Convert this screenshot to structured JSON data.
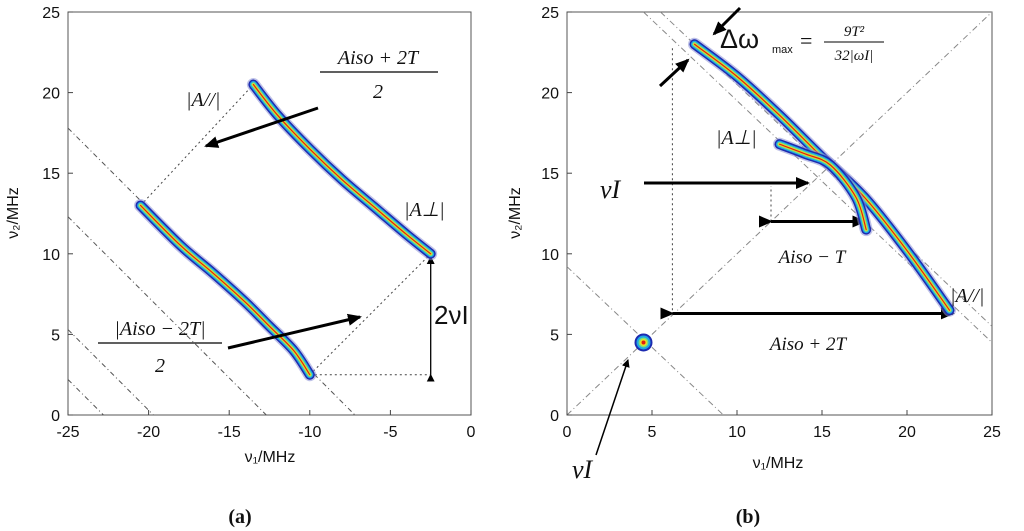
{
  "panels": [
    {
      "id": "a",
      "caption": "(a)",
      "xlabel": "ν₁/MHz",
      "ylabel": "ν₂/MHz",
      "xlim": [
        -25,
        0
      ],
      "ylim": [
        0,
        25
      ],
      "xticks": [
        "-25",
        "-20",
        "-15",
        "-10",
        "-5",
        "0"
      ],
      "yticks": [
        "0",
        "5",
        "10",
        "15",
        "20",
        "25"
      ],
      "annotations": {
        "a_par": "|A//|",
        "a_perp": "|A⊥|",
        "top_fraction_num": "Aiso + 2T",
        "top_fraction_den": "2",
        "bottom_fraction_num": "|Aiso − 2T|",
        "bottom_fraction_den": "2",
        "two_nu": "2νI"
      }
    },
    {
      "id": "b",
      "caption": "(b)",
      "xlabel": "ν₁/MHz",
      "ylabel": "ν₂/MHz",
      "xlim": [
        0,
        25
      ],
      "ylim": [
        0,
        25
      ],
      "xticks": [
        "0",
        "5",
        "10",
        "15",
        "20",
        "25"
      ],
      "yticks": [
        "0",
        "5",
        "10",
        "15",
        "20",
        "25"
      ],
      "annotations": {
        "delta_omega": "Δω",
        "delta_sub": "max",
        "delta_frac_num": "9T²",
        "delta_frac_den": "32|ωI|",
        "a_perp": "|A⊥|",
        "nu_i": "νI",
        "nu_i_bottom": "νI",
        "aiso_minus_t": "Aiso − T",
        "aiso_plus_2t": "Aiso + 2T",
        "a_par": "|A//|"
      }
    }
  ],
  "chart_data": [
    {
      "type": "contour",
      "panel": "a",
      "xlabel": "ν₁/MHz",
      "ylabel": "ν₂/MHz",
      "xlim": [
        -25,
        0
      ],
      "ylim": [
        0,
        25
      ],
      "series": [
        {
          "points_x": [
            -13.5,
            -12,
            -10,
            -8,
            -6,
            -4,
            -2.5
          ],
          "points_y": [
            20.5,
            18.6,
            16.5,
            14.6,
            12.9,
            11.2,
            10
          ]
        },
        {
          "points_x": [
            -20.5,
            -18,
            -16,
            -14,
            -12.5,
            -11,
            -10
          ],
          "points_y": [
            13,
            10.5,
            8.8,
            7,
            5.5,
            4,
            2.5
          ]
        }
      ],
      "guides": {
        "diagonals_c": [
          -26.9,
          -22.8,
          -19.7,
          -12.7,
          -7.2
        ],
        "two_nu_x": -2.5,
        "two_nu_y": [
          2.5,
          9.8
        ]
      }
    },
    {
      "type": "contour",
      "panel": "b",
      "xlabel": "ν₁/MHz",
      "ylabel": "ν₂/MHz",
      "xlim": [
        0,
        25
      ],
      "ylim": [
        0,
        25
      ],
      "series": [
        {
          "points_x": [
            7.5,
            10,
            12.5,
            15,
            17.5,
            20,
            22.5
          ],
          "points_y": [
            23,
            21,
            18.6,
            16,
            13.5,
            10.2,
            6.5
          ]
        },
        {
          "points_x": [
            12.5,
            14,
            15.5,
            17,
            17.6
          ],
          "points_y": [
            16.8,
            16.2,
            15.5,
            13.5,
            11.5
          ]
        },
        {
          "points_x": [
            4.5
          ],
          "points_y": [
            4.5
          ]
        }
      ],
      "guides": {
        "lines": [
          {
            "x1": 0,
            "y1": 0,
            "x2": 25,
            "y2": 25
          },
          {
            "x1": 0,
            "y1": 9.2,
            "x2": 9.2,
            "y2": 0
          },
          {
            "x1": 4.5,
            "y1": 25,
            "x2": 25,
            "y2": 4.5
          },
          {
            "x1": 5.5,
            "y1": 25,
            "x2": 25,
            "y2": 5.5
          }
        ],
        "vline_x": 6.2,
        "vline_y": [
          6.5,
          22.8
        ],
        "hline_y": 12,
        "hline_x": [
          12,
          17.5
        ]
      }
    }
  ]
}
